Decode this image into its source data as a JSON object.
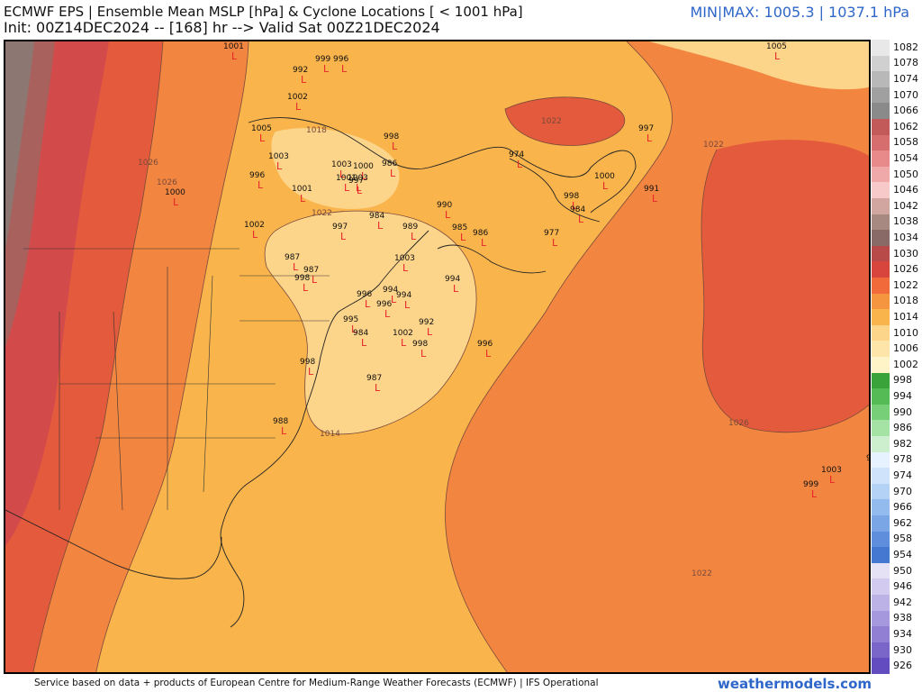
{
  "header": {
    "title": "ECMWF EPS | Ensemble Mean MSLP [hPa] & Cyclone Locations [ < 1001 hPa]",
    "init_line": "Init: 00Z14DEC2024 -- [168] hr --> Valid Sat 00Z21DEC2024",
    "minmax": "MIN|MAX: 1005.3 | 1037.1 hPa"
  },
  "footer": {
    "credit": "Service based on data + products of European Centre for Medium-Range Weather Forecasts (ECMWF) | IFS Operational",
    "brand": "weathermodels.com"
  },
  "colors": {
    "ocean_base": "#f9b44c",
    "contour_1014": "#fcd48a",
    "contour_1018": "#f9b44c",
    "contour_1022": "#f28640",
    "contour_1026": "#e45a3c",
    "contour_1030": "#d34a4a",
    "contour_1034": "#a8615d",
    "contour_1038": "#8d7772",
    "low_marker": "#e8242a",
    "brand": "#2f66c9"
  },
  "isobar_labels": [
    "1026",
    "1026",
    "1022",
    "1022",
    "1022",
    "1022",
    "1022",
    "1018",
    "1014",
    "1014",
    "1026"
  ],
  "cyclone_values": [
    "1001",
    "999",
    "996",
    "992",
    "1002",
    "1005",
    "1003",
    "1000",
    "1002",
    "1001",
    "1003",
    "998",
    "1000",
    "996",
    "986",
    "1003",
    "1001",
    "997",
    "984",
    "990",
    "989",
    "985",
    "986",
    "997",
    "987",
    "987",
    "998",
    "1003",
    "1002",
    "994",
    "994",
    "996",
    "996",
    "994",
    "995",
    "984",
    "992",
    "998",
    "996",
    "987",
    "998",
    "988",
    "974",
    "997",
    "1000",
    "991",
    "998",
    "984",
    "977",
    "1005",
    "998",
    "1003",
    "999"
  ],
  "colorbar": {
    "labels": [
      "1082",
      "1078",
      "1074",
      "1070",
      "1066",
      "1062",
      "1058",
      "1054",
      "1050",
      "1046",
      "1042",
      "1038",
      "1034",
      "1030",
      "1026",
      "1022",
      "1018",
      "1014",
      "1010",
      "1006",
      "1002",
      "998",
      "994",
      "990",
      "986",
      "982",
      "978",
      "974",
      "970",
      "966",
      "962",
      "958",
      "954",
      "950",
      "946",
      "942",
      "938",
      "934",
      "930",
      "926"
    ],
    "colors": [
      "#e8e8e8",
      "#d0d0d0",
      "#b8b8b8",
      "#a0a0a0",
      "#8a8a8a",
      "#c25a5a",
      "#d66e6e",
      "#e88a8a",
      "#f0a9a9",
      "#f7c9c9",
      "#d2a6a0",
      "#a88982",
      "#8a6a66",
      "#b84a4a",
      "#d8453d",
      "#f06a3a",
      "#f5953f",
      "#f9b44c",
      "#fcd48a",
      "#fde4a8",
      "#fff4c8",
      "#3aa43a",
      "#55bb55",
      "#77d077",
      "#a5e3a5",
      "#cdefcd",
      "#e6f2ff",
      "#cfe4fb",
      "#b4d2f5",
      "#94bbee",
      "#7aa6e6",
      "#5f8fdc",
      "#4578d0",
      "#e6e2f5",
      "#d2caef",
      "#bcb2e6",
      "#a698dd",
      "#907fd3",
      "#7a66c9",
      "#634cbf"
    ]
  }
}
